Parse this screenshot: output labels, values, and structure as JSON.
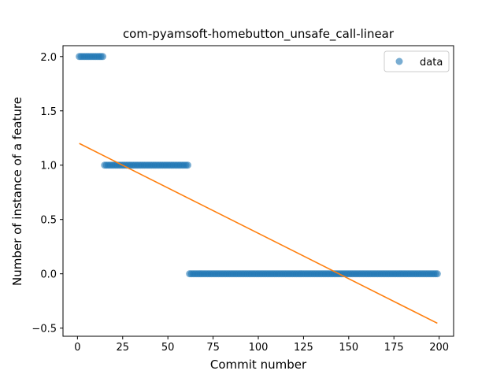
{
  "chart_data": {
    "type": "scatter",
    "title": "com-pyamsoft-homebutton_unsafe_call-linear",
    "xlabel": "Commit number",
    "ylabel": "Number of instance of a feature",
    "xlim": [
      -8,
      208
    ],
    "ylim": [
      -0.575,
      2.1
    ],
    "xticks": [
      0,
      25,
      50,
      75,
      100,
      125,
      150,
      175,
      200
    ],
    "yticks": [
      -0.5,
      0.0,
      0.5,
      1.0,
      1.5,
      2.0
    ],
    "xtick_labels": [
      "0",
      "25",
      "50",
      "75",
      "100",
      "125",
      "150",
      "175",
      "200"
    ],
    "ytick_labels": [
      "−0.5",
      "0.0",
      "0.5",
      "1.0",
      "1.5",
      "2.0"
    ],
    "legend": {
      "position": "upper-right",
      "entries": [
        "data"
      ]
    },
    "grid": false,
    "series": [
      {
        "name": "data",
        "kind": "scatter",
        "color": "#1f77b4",
        "segments": [
          {
            "x_start": 1,
            "x_end": 14,
            "y": 2
          },
          {
            "x_start": 15,
            "x_end": 61,
            "y": 1
          },
          {
            "x_start": 62,
            "x_end": 199,
            "y": 0
          }
        ]
      },
      {
        "kind": "line",
        "color": "#ff7f0e",
        "x": [
          1,
          199
        ],
        "y": [
          1.2,
          -0.455
        ]
      }
    ]
  }
}
